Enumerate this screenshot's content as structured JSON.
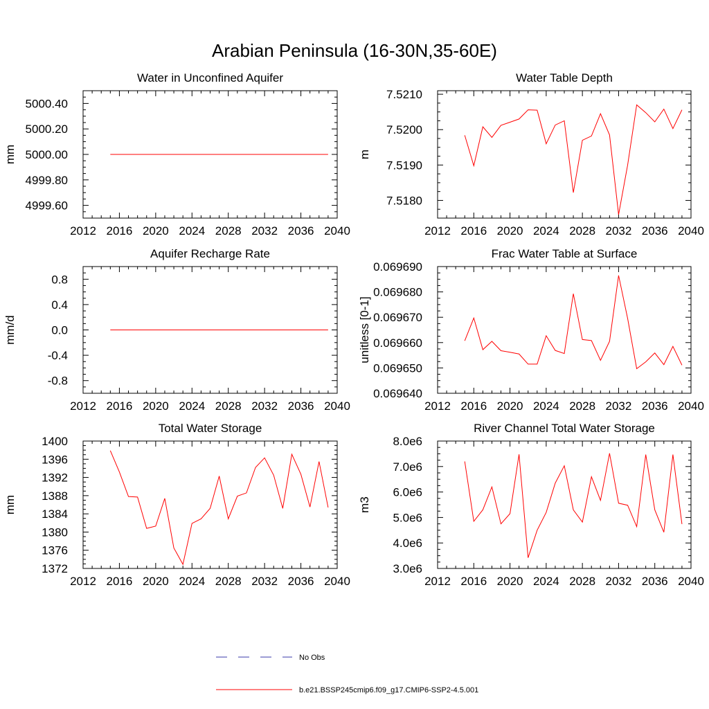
{
  "figure": {
    "title": "Arabian Peninsula (16-30N,35-60E)"
  },
  "legend": {
    "obs_label": "No Obs",
    "model_label": "b.e21.BSSP245cmip6.f09_g17.CMIP6-SSP2-4.5.001",
    "obs_color": "#3a3aa8",
    "model_color": "#ff0000"
  },
  "chart_data": [
    {
      "type": "line",
      "title": "Water in Unconfined Aquifer",
      "xlabel": "",
      "ylabel": "mm",
      "xlim": [
        2012,
        2040
      ],
      "ylim": [
        4999.5,
        5000.5
      ],
      "xticks": [
        2012,
        2016,
        2020,
        2024,
        2028,
        2032,
        2036,
        2040
      ],
      "xtick_labels": [
        "2012",
        "2016",
        "2020",
        "2024",
        "2028",
        "2032",
        "2036",
        "2040"
      ],
      "yticks": [
        4999.6,
        4999.8,
        5000.0,
        5000.2,
        5000.4
      ],
      "ytick_labels": [
        "4999.60",
        "4999.80",
        "5000.00",
        "5000.20",
        "5000.40"
      ],
      "x": [
        2015,
        2016,
        2017,
        2018,
        2019,
        2020,
        2021,
        2022,
        2023,
        2024,
        2025,
        2026,
        2027,
        2028,
        2029,
        2030,
        2031,
        2032,
        2033,
        2034,
        2035,
        2036,
        2037,
        2038,
        2039
      ],
      "series": [
        {
          "values": [
            5000.0,
            5000.0,
            5000.0,
            5000.0,
            5000.0,
            5000.0,
            5000.0,
            5000.0,
            5000.0,
            5000.0,
            5000.0,
            5000.0,
            5000.0,
            5000.0,
            5000.0,
            5000.0,
            5000.0,
            5000.0,
            5000.0,
            5000.0,
            5000.0,
            5000.0,
            5000.0,
            5000.0,
            5000.0
          ]
        }
      ]
    },
    {
      "type": "line",
      "title": "Water Table Depth",
      "xlabel": "",
      "ylabel": "m",
      "xlim": [
        2012,
        2040
      ],
      "ylim": [
        7.5175,
        7.5211
      ],
      "xticks": [
        2012,
        2016,
        2020,
        2024,
        2028,
        2032,
        2036,
        2040
      ],
      "xtick_labels": [
        "2012",
        "2016",
        "2020",
        "2024",
        "2028",
        "2032",
        "2036",
        "2040"
      ],
      "yticks": [
        7.518,
        7.519,
        7.52,
        7.521
      ],
      "ytick_labels": [
        "7.5180",
        "7.5190",
        "7.5200",
        "7.5210"
      ],
      "x": [
        2015,
        2016,
        2017,
        2018,
        2019,
        2020,
        2021,
        2022,
        2023,
        2024,
        2025,
        2026,
        2027,
        2028,
        2029,
        2030,
        2031,
        2032,
        2033,
        2034,
        2035,
        2036,
        2037,
        2038,
        2039
      ],
      "series": [
        {
          "values": [
            7.51984,
            7.51898,
            7.52008,
            7.51978,
            7.52012,
            7.52021,
            7.5203,
            7.52056,
            7.52055,
            7.5196,
            7.52013,
            7.52025,
            7.51822,
            7.5197,
            7.51982,
            7.52045,
            7.51985,
            7.5176,
            7.519,
            7.5207,
            7.52048,
            7.52022,
            7.52058,
            7.52003,
            7.52056
          ]
        }
      ]
    },
    {
      "type": "line",
      "title": "Aquifer Recharge Rate",
      "xlabel": "",
      "ylabel": "mm/d",
      "xlim": [
        2012,
        2040
      ],
      "ylim": [
        -1.0,
        1.0
      ],
      "xticks": [
        2012,
        2016,
        2020,
        2024,
        2028,
        2032,
        2036,
        2040
      ],
      "xtick_labels": [
        "2012",
        "2016",
        "2020",
        "2024",
        "2028",
        "2032",
        "2036",
        "2040"
      ],
      "yticks": [
        -0.8,
        -0.4,
        0.0,
        0.4,
        0.8
      ],
      "ytick_labels": [
        "-0.8",
        "-0.4",
        "0.0",
        "0.4",
        "0.8"
      ],
      "x": [
        2015,
        2016,
        2017,
        2018,
        2019,
        2020,
        2021,
        2022,
        2023,
        2024,
        2025,
        2026,
        2027,
        2028,
        2029,
        2030,
        2031,
        2032,
        2033,
        2034,
        2035,
        2036,
        2037,
        2038,
        2039
      ],
      "series": [
        {
          "values": [
            0,
            0,
            0,
            0,
            0,
            0,
            0,
            0,
            0,
            0,
            0,
            0,
            0,
            0,
            0,
            0,
            0,
            0,
            0,
            0,
            0,
            0,
            0,
            0,
            0
          ]
        }
      ]
    },
    {
      "type": "line",
      "title": "Frac Water Table at Surface",
      "xlabel": "",
      "ylabel": "unitless [0-1]",
      "xlim": [
        2012,
        2040
      ],
      "ylim": [
        0.06964,
        0.06969
      ],
      "xticks": [
        2012,
        2016,
        2020,
        2024,
        2028,
        2032,
        2036,
        2040
      ],
      "xtick_labels": [
        "2012",
        "2016",
        "2020",
        "2024",
        "2028",
        "2032",
        "2036",
        "2040"
      ],
      "yticks": [
        0.06964,
        0.06965,
        0.06966,
        0.06967,
        0.06968,
        0.06969
      ],
      "ytick_labels": [
        "0.069640",
        "0.069650",
        "0.069660",
        "0.069670",
        "0.069680",
        "0.069690"
      ],
      "x": [
        2015,
        2016,
        2017,
        2018,
        2019,
        2020,
        2021,
        2022,
        2023,
        2024,
        2025,
        2026,
        2027,
        2028,
        2029,
        2030,
        2031,
        2032,
        2033,
        2034,
        2035,
        2036,
        2037,
        2038,
        2039
      ],
      "series": [
        {
          "values": [
            0.0696607,
            0.0696697,
            0.0696572,
            0.0696605,
            0.0696568,
            0.0696562,
            0.0696555,
            0.0696515,
            0.0696515,
            0.0696627,
            0.0696569,
            0.0696557,
            0.0696793,
            0.0696612,
            0.0696608,
            0.069653,
            0.0696605,
            0.0696865,
            0.0696695,
            0.0696497,
            0.0696524,
            0.0696559,
            0.0696513,
            0.0696585,
            0.0696511
          ]
        }
      ]
    },
    {
      "type": "line",
      "title": "Total Water Storage",
      "xlabel": "",
      "ylabel": "mm",
      "xlim": [
        2012,
        2040
      ],
      "ylim": [
        1372,
        1400
      ],
      "xticks": [
        2012,
        2016,
        2020,
        2024,
        2028,
        2032,
        2036,
        2040
      ],
      "xtick_labels": [
        "2012",
        "2016",
        "2020",
        "2024",
        "2028",
        "2032",
        "2036",
        "2040"
      ],
      "yticks": [
        1372,
        1376,
        1380,
        1384,
        1388,
        1392,
        1396,
        1400
      ],
      "ytick_labels": [
        "1372",
        "1376",
        "1380",
        "1384",
        "1388",
        "1392",
        "1396",
        "1400"
      ],
      "x": [
        2015,
        2016,
        2017,
        2018,
        2019,
        2020,
        2021,
        2022,
        2023,
        2024,
        2025,
        2026,
        2027,
        2028,
        2029,
        2030,
        2031,
        2032,
        2033,
        2034,
        2035,
        2036,
        2037,
        2038,
        2039
      ],
      "series": [
        {
          "values": [
            1397.9,
            1393.2,
            1387.8,
            1387.7,
            1380.8,
            1381.3,
            1387.4,
            1376.5,
            1372.9,
            1381.9,
            1382.9,
            1385.2,
            1392.3,
            1382.9,
            1387.9,
            1388.6,
            1394.2,
            1396.3,
            1392.5,
            1385.2,
            1397.1,
            1392.7,
            1385.5,
            1395.5,
            1385.4
          ]
        }
      ]
    },
    {
      "type": "line",
      "title": "River Channel Total Water Storage",
      "xlabel": "",
      "ylabel": "m3",
      "xlim": [
        2012,
        2040
      ],
      "ylim": [
        3000000,
        8000000
      ],
      "xticks": [
        2012,
        2016,
        2020,
        2024,
        2028,
        2032,
        2036,
        2040
      ],
      "xtick_labels": [
        "2012",
        "2016",
        "2020",
        "2024",
        "2028",
        "2032",
        "2036",
        "2040"
      ],
      "yticks": [
        3000000,
        4000000,
        5000000,
        6000000,
        7000000,
        8000000
      ],
      "ytick_labels": [
        "3.0e6",
        "4.0e6",
        "5.0e6",
        "6.0e6",
        "7.0e6",
        "8.0e6"
      ],
      "x": [
        2015,
        2016,
        2017,
        2018,
        2019,
        2020,
        2021,
        2022,
        2023,
        2024,
        2025,
        2026,
        2027,
        2028,
        2029,
        2030,
        2031,
        2032,
        2033,
        2034,
        2035,
        2036,
        2037,
        2038,
        2039
      ],
      "series": [
        {
          "values": [
            7200000,
            4850000,
            5300000,
            6200000,
            4750000,
            5150000,
            7480000,
            3420000,
            4500000,
            5200000,
            6350000,
            7030000,
            5300000,
            4820000,
            6600000,
            5670000,
            7520000,
            5560000,
            5480000,
            4640000,
            7470000,
            5300000,
            4420000,
            7470000,
            4740000
          ]
        }
      ]
    }
  ]
}
